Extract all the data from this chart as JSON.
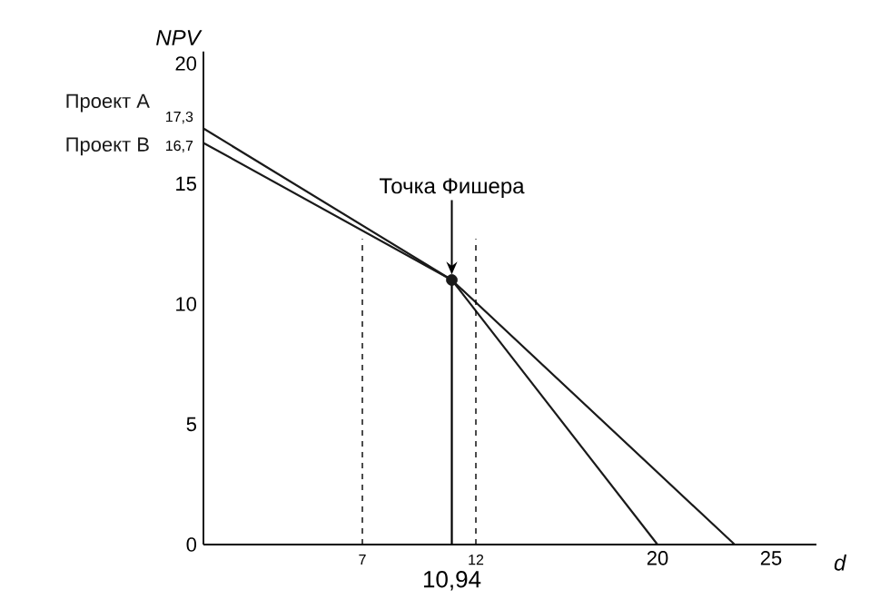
{
  "chart_data": {
    "type": "line",
    "xlabel": "d",
    "ylabel": "NPV",
    "xlim": [
      0,
      27
    ],
    "ylim": [
      0,
      20.5
    ],
    "xticks": [
      20,
      25
    ],
    "yticks": [
      0,
      5,
      10,
      15,
      20
    ],
    "series": [
      {
        "name": "Проект А",
        "color": "#1a1a1a",
        "x": [
          0,
          10.94,
          20
        ],
        "values": [
          17.3,
          11,
          0
        ],
        "value_labels": [
          "17,3",
          null,
          null
        ]
      },
      {
        "name": "Проект В",
        "color": "#1a1a1a",
        "x": [
          0,
          10.94,
          23.4
        ],
        "values": [
          16.7,
          11,
          0
        ],
        "value_labels": [
          "16,7",
          null,
          null
        ]
      },
      {
        "type": "scatter",
        "color": "#1a1a1a",
        "x": [
          10.94
        ],
        "values": [
          11
        ]
      }
    ],
    "ref_lines": [
      {
        "axis": "x",
        "value": 7,
        "label": "7",
        "line_style": "dashed"
      },
      {
        "axis": "x",
        "value": 10.94,
        "label": "10,94",
        "line_style": "solid"
      },
      {
        "axis": "x",
        "value": 12,
        "label": "12",
        "line_style": "dashed"
      }
    ],
    "annotations": [
      "Точка Фишера"
    ]
  }
}
